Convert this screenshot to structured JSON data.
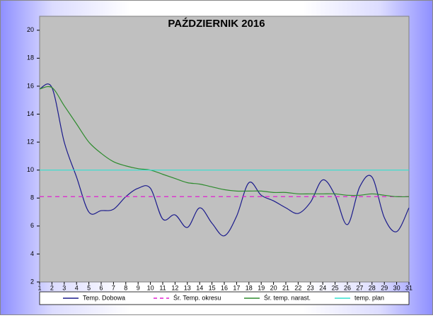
{
  "chart_data": {
    "type": "line",
    "title": "PAŹDZIERNIK 2016",
    "x": [
      1,
      2,
      3,
      4,
      5,
      6,
      7,
      8,
      9,
      10,
      11,
      12,
      13,
      14,
      15,
      16,
      17,
      18,
      19,
      20,
      21,
      22,
      23,
      24,
      25,
      26,
      27,
      28,
      29,
      30,
      31
    ],
    "xlim": [
      1,
      31
    ],
    "xticks": [
      1,
      2,
      3,
      4,
      5,
      6,
      7,
      8,
      9,
      10,
      11,
      12,
      13,
      14,
      15,
      16,
      17,
      18,
      19,
      20,
      21,
      22,
      23,
      24,
      25,
      26,
      27,
      28,
      29,
      30,
      31
    ],
    "ylim": [
      2,
      21
    ],
    "yticks": [
      2,
      4,
      6,
      8,
      10,
      12,
      14,
      16,
      18,
      20
    ],
    "series": [
      {
        "name": "Temp. Dobowa",
        "color": "#1a1a8c",
        "style": "solid",
        "smooth": true,
        "values": [
          15.8,
          15.9,
          12,
          9.5,
          7,
          7.1,
          7.2,
          8.1,
          8.7,
          8.7,
          6.5,
          6.8,
          5.9,
          7.3,
          6.2,
          5.3,
          6.7,
          9.1,
          8.2,
          7.8,
          7.3,
          6.9,
          7.7,
          9.3,
          8.2,
          6.1,
          8.8,
          9.5,
          6.6,
          5.6,
          7.3
        ]
      },
      {
        "name": "Śr. Temp. okresu",
        "color": "#e020d0",
        "style": "dashed",
        "smooth": false,
        "values": [
          8.1,
          8.1,
          8.1,
          8.1,
          8.1,
          8.1,
          8.1,
          8.1,
          8.1,
          8.1,
          8.1,
          8.1,
          8.1,
          8.1,
          8.1,
          8.1,
          8.1,
          8.1,
          8.1,
          8.1,
          8.1,
          8.1,
          8.1,
          8.1,
          8.1,
          8.1,
          8.1,
          8.1,
          8.1,
          8.1,
          8.1
        ]
      },
      {
        "name": "Śr. temp. narast.",
        "color": "#2e8b2e",
        "style": "solid",
        "smooth": true,
        "values": [
          15.8,
          15.9,
          14.6,
          13.3,
          12,
          11.2,
          10.6,
          10.3,
          10.1,
          10,
          9.7,
          9.4,
          9.1,
          9,
          8.8,
          8.6,
          8.5,
          8.5,
          8.5,
          8.4,
          8.4,
          8.3,
          8.3,
          8.3,
          8.3,
          8.2,
          8.2,
          8.3,
          8.2,
          8.1,
          8.1
        ]
      },
      {
        "name": "temp. plan",
        "color": "#30e0d0",
        "style": "solid",
        "smooth": false,
        "values": [
          10,
          10,
          10,
          10,
          10,
          10,
          10,
          10,
          10,
          10,
          10,
          10,
          10,
          10,
          10,
          10,
          10,
          10,
          10,
          10,
          10,
          10,
          10,
          10,
          10,
          10,
          10,
          10,
          10,
          10,
          10
        ]
      }
    ]
  }
}
